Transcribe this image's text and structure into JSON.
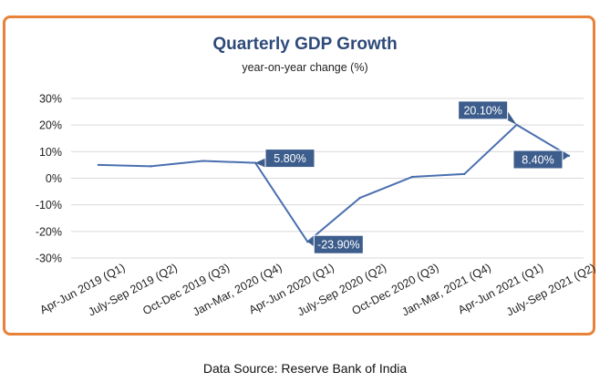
{
  "chart_data": {
    "type": "line",
    "title": "Quarterly GDP Growth",
    "subtitle": "year-on-year change (%)",
    "categories": [
      "Apr-Jun 2019 (Q1)",
      "July-Sep 2019 (Q2)",
      "Oct-Dec 2019 (Q3)",
      "Jan-Mar, 2020 (Q4)",
      "Apr-Jun 2020 (Q1)",
      "July-Sep 2020 (Q2)",
      "Oct-Dec 2020 (Q3)",
      "Jan-Mar, 2021 (Q4)",
      "Apr-Jun 2021 (Q1)",
      "July-Sep 2021 (Q2)"
    ],
    "series": [
      {
        "values": [
          5.0,
          4.5,
          6.5,
          5.8,
          -23.9,
          -7.4,
          0.5,
          1.6,
          20.1,
          8.4
        ]
      }
    ],
    "yticks": [
      "30%",
      "20%",
      "10%",
      "0%",
      "-10%",
      "-20%",
      "-30%"
    ],
    "ylim": [
      -30,
      30
    ],
    "callouts": [
      {
        "index": 3,
        "text": "5.80%",
        "side": "right-above"
      },
      {
        "index": 4,
        "text": "-23.90%",
        "side": "right-below"
      },
      {
        "index": 8,
        "text": "20.10%",
        "side": "left-above"
      },
      {
        "index": 9,
        "text": "8.40%",
        "side": "left-below"
      }
    ],
    "line_color": "#4a6fb0",
    "callout_color": "#3d5d8c",
    "grid": true
  },
  "footer": {
    "source": "Data Source: Reserve Bank of India"
  }
}
